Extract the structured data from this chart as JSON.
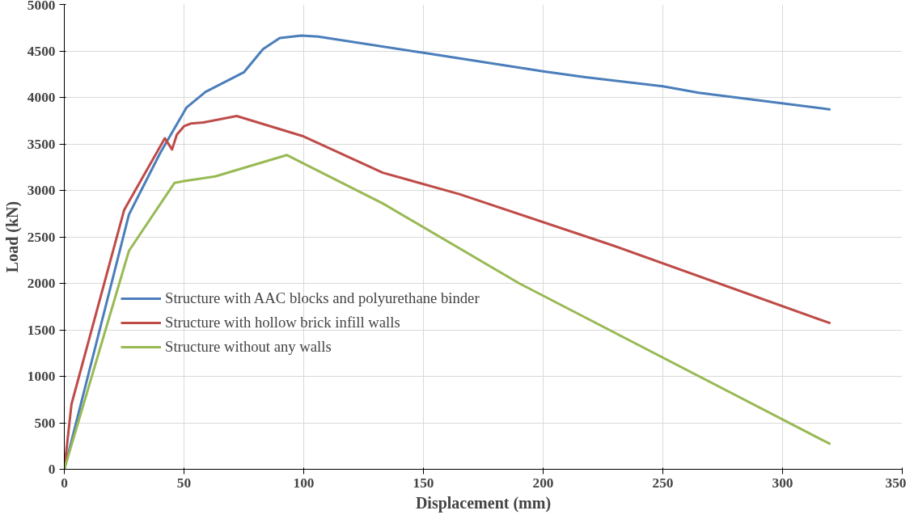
{
  "chart_data": {
    "type": "line",
    "xlabel": "Displacement (mm)",
    "ylabel": "Load (kN)",
    "xlim": [
      0,
      350
    ],
    "ylim": [
      0,
      5000
    ],
    "xticks": [
      0,
      50,
      100,
      150,
      200,
      250,
      300,
      350
    ],
    "yticks": [
      0,
      500,
      1000,
      1500,
      2000,
      2500,
      3000,
      3500,
      4000,
      4500,
      5000
    ],
    "grid": true,
    "legend": "left",
    "marker": "none",
    "line_style": "solid",
    "series": [
      {
        "name": "Structure with AAC blocks and polyurethane binder",
        "color": "#4a7ebb",
        "x": [
          0,
          27,
          40,
          51,
          59,
          75,
          83,
          90,
          99,
          106,
          150,
          200,
          217,
          250,
          265,
          320
        ],
        "values": [
          0,
          2740,
          3400,
          3890,
          4060,
          4270,
          4520,
          4640,
          4665,
          4655,
          4480,
          4280,
          4220,
          4120,
          4050,
          3870
        ]
      },
      {
        "name": "Structure with hollow brick infill walls",
        "color": "#be4b48",
        "x": [
          0,
          3,
          25,
          42,
          45,
          47,
          50,
          53,
          58,
          72,
          100,
          133,
          165,
          230,
          320
        ],
        "values": [
          0,
          700,
          2790,
          3560,
          3440,
          3600,
          3690,
          3720,
          3730,
          3800,
          3580,
          3190,
          2960,
          2400,
          1570
        ]
      },
      {
        "name": "Structure without any walls",
        "color": "#98b954",
        "x": [
          0,
          27,
          46,
          50,
          63,
          93,
          133,
          190,
          320
        ],
        "values": [
          0,
          2350,
          3080,
          3100,
          3150,
          3380,
          2860,
          2000,
          270
        ]
      }
    ]
  }
}
